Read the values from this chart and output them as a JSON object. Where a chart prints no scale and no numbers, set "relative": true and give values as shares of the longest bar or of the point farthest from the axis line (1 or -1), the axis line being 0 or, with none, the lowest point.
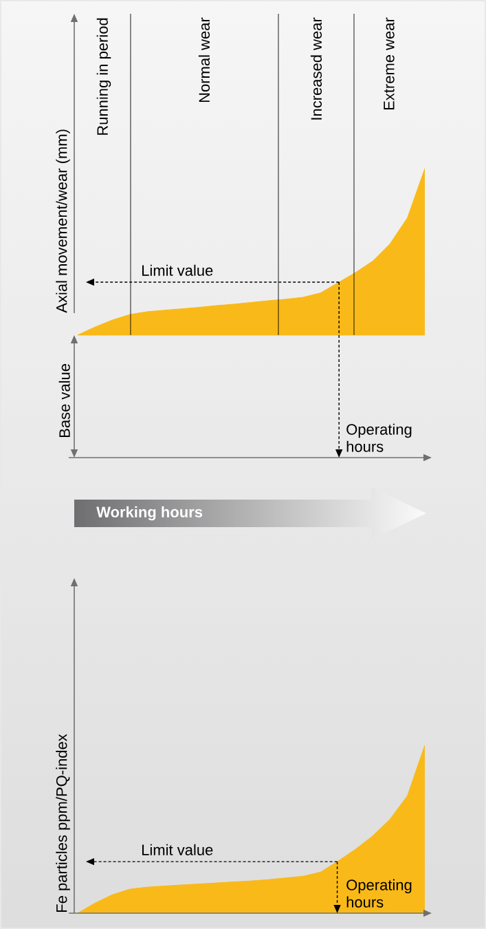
{
  "chart_data": [
    {
      "type": "area",
      "relative": true,
      "ylabel": "Axial movement/wear (mm)",
      "xlabel": "Operating hours",
      "categories": [
        null,
        null,
        null,
        null,
        null,
        null,
        null,
        null,
        null,
        null,
        null,
        null,
        null,
        null,
        null,
        null,
        null,
        null,
        null,
        null,
        null
      ],
      "series": [
        {
          "color": "#f9b918",
          "values": [
            0.424,
            0.452,
            0.476,
            0.495,
            0.505,
            0.51,
            0.515,
            0.52,
            0.526,
            0.531,
            0.537,
            0.543,
            0.548,
            0.555,
            0.57,
            0.605,
            0.64,
            0.68,
            0.74,
            0.83,
            1
          ]
        }
      ],
      "ref_lines": [
        {
          "axis": "y",
          "value": 0.424,
          "label": "Base value",
          "line_style": "solid"
        },
        {
          "axis": "y",
          "value": 0.607,
          "label": "Limit value",
          "line_style": "dashed"
        }
      ],
      "annotations": [
        "Running in period",
        "Normal wear",
        "Increased wear",
        "Extreme wear",
        "Working hours"
      ]
    },
    {
      "type": "area",
      "relative": true,
      "ylabel": "Fe particles ppm/PQ-index",
      "xlabel": "Operating hours",
      "categories": [
        null,
        null,
        null,
        null,
        null,
        null,
        null,
        null,
        null,
        null,
        null,
        null,
        null,
        null,
        null,
        null,
        null,
        null,
        null,
        null,
        null
      ],
      "series": [
        {
          "color": "#f9b918",
          "values": [
            0,
            0.06,
            0.11,
            0.143,
            0.155,
            0.162,
            0.168,
            0.174,
            0.18,
            0.186,
            0.192,
            0.2,
            0.21,
            0.22,
            0.245,
            0.31,
            0.38,
            0.46,
            0.56,
            0.7,
            1
          ]
        }
      ],
      "ref_lines": [
        {
          "axis": "y",
          "value": 0.307,
          "label": "Limit value",
          "line_style": "dashed"
        }
      ]
    }
  ]
}
